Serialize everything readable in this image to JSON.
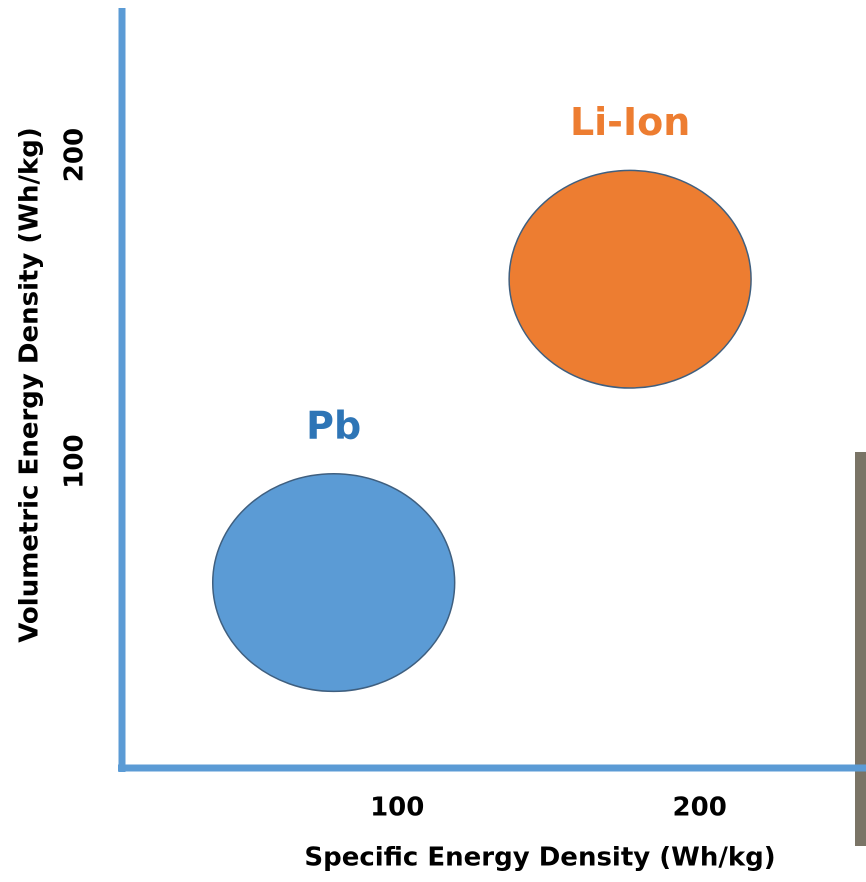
{
  "chart_data": {
    "type": "ellipse",
    "xlabel": "Specific Energy Density (Wh/kg)",
    "ylabel": "Volumetric Energy Density (Wh/kg)",
    "xlim": [
      9,
      255
    ],
    "ylim": [
      0,
      248
    ],
    "xticks": [
      100,
      200
    ],
    "yticks": [
      100,
      200
    ],
    "grid": false,
    "series": [
      {
        "name": "Pb",
        "color": "#5b9bd5",
        "label_color": "#2e75b6",
        "xrange": [
          39,
          119
        ],
        "yrange": [
          25,
          96
        ]
      },
      {
        "name": "Li-Ion",
        "color": "#ed7d31",
        "label_color": "#ed7d31",
        "xrange": [
          137,
          217
        ],
        "yrange": [
          124,
          195
        ]
      }
    ]
  }
}
